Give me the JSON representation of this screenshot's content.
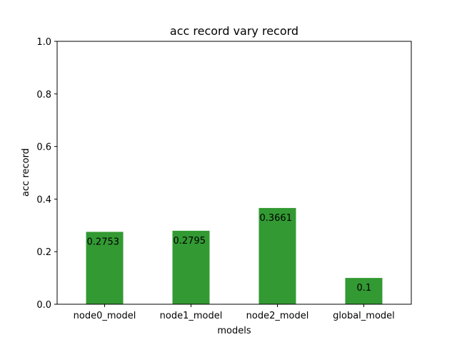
{
  "chart_data": {
    "type": "bar",
    "title": "acc record vary record",
    "xlabel": "models",
    "ylabel": "acc record",
    "categories": [
      "node0_model",
      "node1_model",
      "node2_model",
      "global_model"
    ],
    "values": [
      0.2753,
      0.2795,
      0.3661,
      0.1
    ],
    "value_labels": [
      "0.2753",
      "0.2795",
      "0.3661",
      "0.1"
    ],
    "ylim": [
      0,
      1.0
    ],
    "yticks": [
      0.0,
      0.2,
      0.4,
      0.6,
      0.8,
      1.0
    ],
    "ytick_labels": [
      "0.0",
      "0.2",
      "0.4",
      "0.6",
      "0.8",
      "1.0"
    ],
    "bar_color": "#339933",
    "grid": false
  }
}
